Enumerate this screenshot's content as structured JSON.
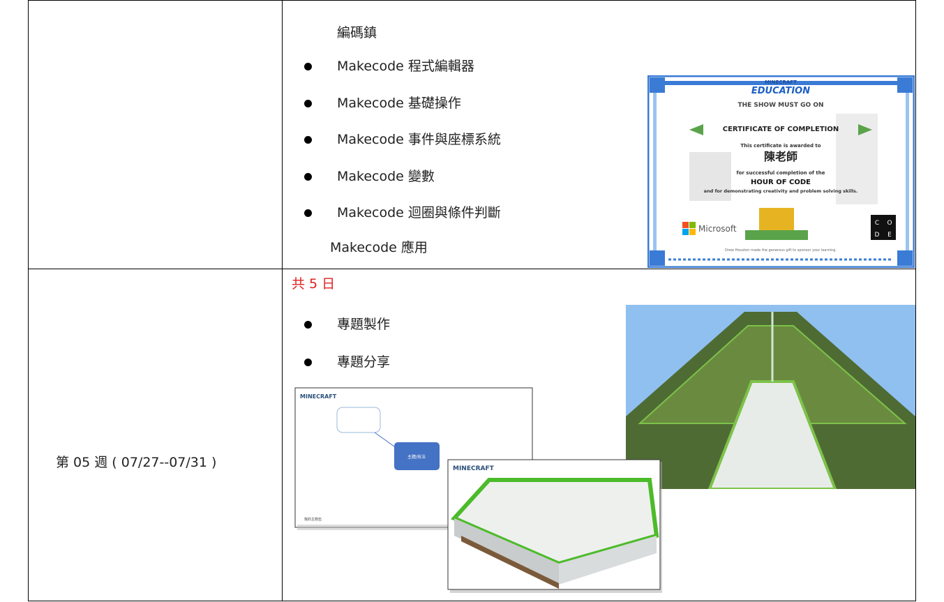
{
  "table": {
    "rows": [
      {
        "lead": "編碼鎮",
        "bullets": [
          "Makecode 程式編輯器",
          "Makecode 基礎操作",
          "Makecode 事件與座標系統",
          "Makecode 變數",
          "Makecode 迴圈與條件判斷"
        ],
        "tail": "Makecode 應用",
        "certificate": {
          "brand": "MINECRAFT",
          "edition": "EDUCATION",
          "subtitle": "THE SHOW MUST GO ON",
          "heading": "CERTIFICATE OF COMPLETION",
          "awarded": "This certificate is awarded to",
          "name": "陳老師",
          "completion": "for successful completion of the",
          "course": "HOUR OF CODE",
          "skills": "and for demonstrating creativity and problem solving skills.",
          "sponsor": "Microsoft",
          "code": [
            "C",
            "O",
            "D",
            "E"
          ],
          "footer": "Drew Houston made the generous gift to sponsor your learning."
        }
      },
      {
        "week": "第 05 週 ( 07/27--07/31 )",
        "note": "共 5 日",
        "bullets": [
          "專題製作",
          "專題分享"
        ],
        "slide": {
          "logo": "MINECRAFT",
          "node": "主題/技法",
          "footer": "我的主題伍"
        },
        "slide2": {
          "logo": "MINECRAFT"
        }
      }
    ]
  }
}
